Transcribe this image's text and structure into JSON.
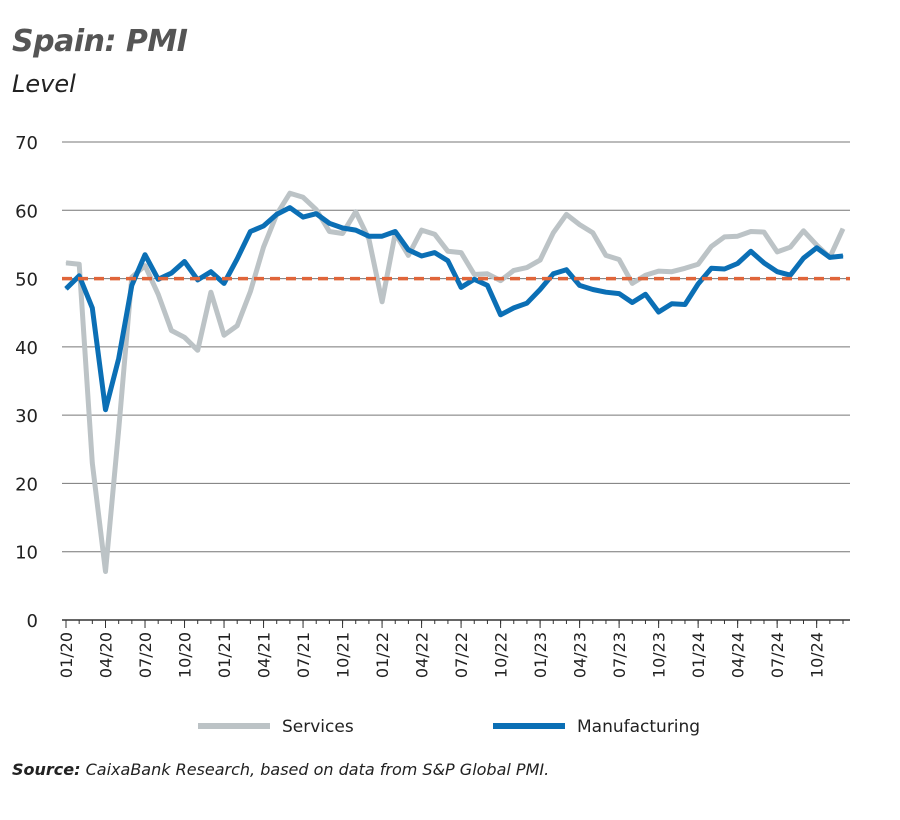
{
  "chart_data": {
    "type": "line",
    "title": "Spain: PMI",
    "subtitle": "Level",
    "xlabel": "",
    "ylabel": "",
    "ylim": [
      0,
      70
    ],
    "yticks": [
      "0",
      "10",
      "20",
      "30",
      "40",
      "50",
      "60",
      "70"
    ],
    "grid": true,
    "legend": "bottom",
    "xticks": [
      "01/20",
      "04/20",
      "07/20",
      "10/20",
      "01/21",
      "04/21",
      "07/21",
      "10/21",
      "01/22",
      "04/22",
      "07/22",
      "10/22",
      "01/23",
      "04/23",
      "07/23",
      "10/23",
      "01/24",
      "04/24",
      "07/24",
      "10/24"
    ],
    "x_start": "01/20",
    "x_end": "12/24",
    "reference_line": {
      "value": 50,
      "color": "#e0653a",
      "style": "dashed"
    },
    "series": [
      {
        "name": "Services",
        "color": "#bcc3c6",
        "values": [
          52.3,
          52.1,
          23.0,
          7.1,
          27.9,
          50.2,
          51.9,
          47.7,
          42.4,
          41.4,
          39.5,
          48.0,
          41.7,
          43.1,
          48.1,
          54.6,
          59.4,
          62.5,
          61.9,
          60.1,
          56.9,
          56.6,
          59.8,
          55.8,
          46.6,
          56.6,
          53.4,
          57.1,
          56.5,
          54.0,
          53.8,
          50.6,
          50.7,
          49.7,
          51.2,
          51.6,
          52.7,
          56.7,
          59.4,
          57.9,
          56.7,
          53.4,
          52.8,
          49.3,
          50.5,
          51.1,
          51.0,
          51.5,
          52.1,
          54.7,
          56.1,
          56.2,
          56.9,
          56.8,
          53.9,
          54.6,
          57.0,
          54.9,
          53.1,
          57.3
        ]
      },
      {
        "name": "Manufacturing",
        "color": "#0b6fb5",
        "values": [
          48.5,
          50.4,
          45.7,
          30.8,
          38.3,
          49.0,
          53.5,
          49.9,
          50.8,
          52.5,
          49.8,
          51.0,
          49.3,
          52.9,
          56.9,
          57.7,
          59.4,
          60.4,
          59.0,
          59.5,
          58.1,
          57.4,
          57.1,
          56.2,
          56.2,
          56.9,
          54.2,
          53.3,
          53.8,
          52.6,
          48.7,
          49.9,
          49.0,
          44.7,
          45.7,
          46.4,
          48.4,
          50.7,
          51.3,
          49.0,
          48.4,
          48.0,
          47.8,
          46.5,
          47.7,
          45.1,
          46.3,
          46.2,
          49.2,
          51.5,
          51.4,
          52.2,
          54.0,
          52.3,
          51.0,
          50.5,
          53.0,
          54.5,
          53.1,
          53.3
        ]
      }
    ]
  },
  "source": {
    "label": "Source:",
    "text": "CaixaBank Research, based on data from S&P Global PMI."
  }
}
